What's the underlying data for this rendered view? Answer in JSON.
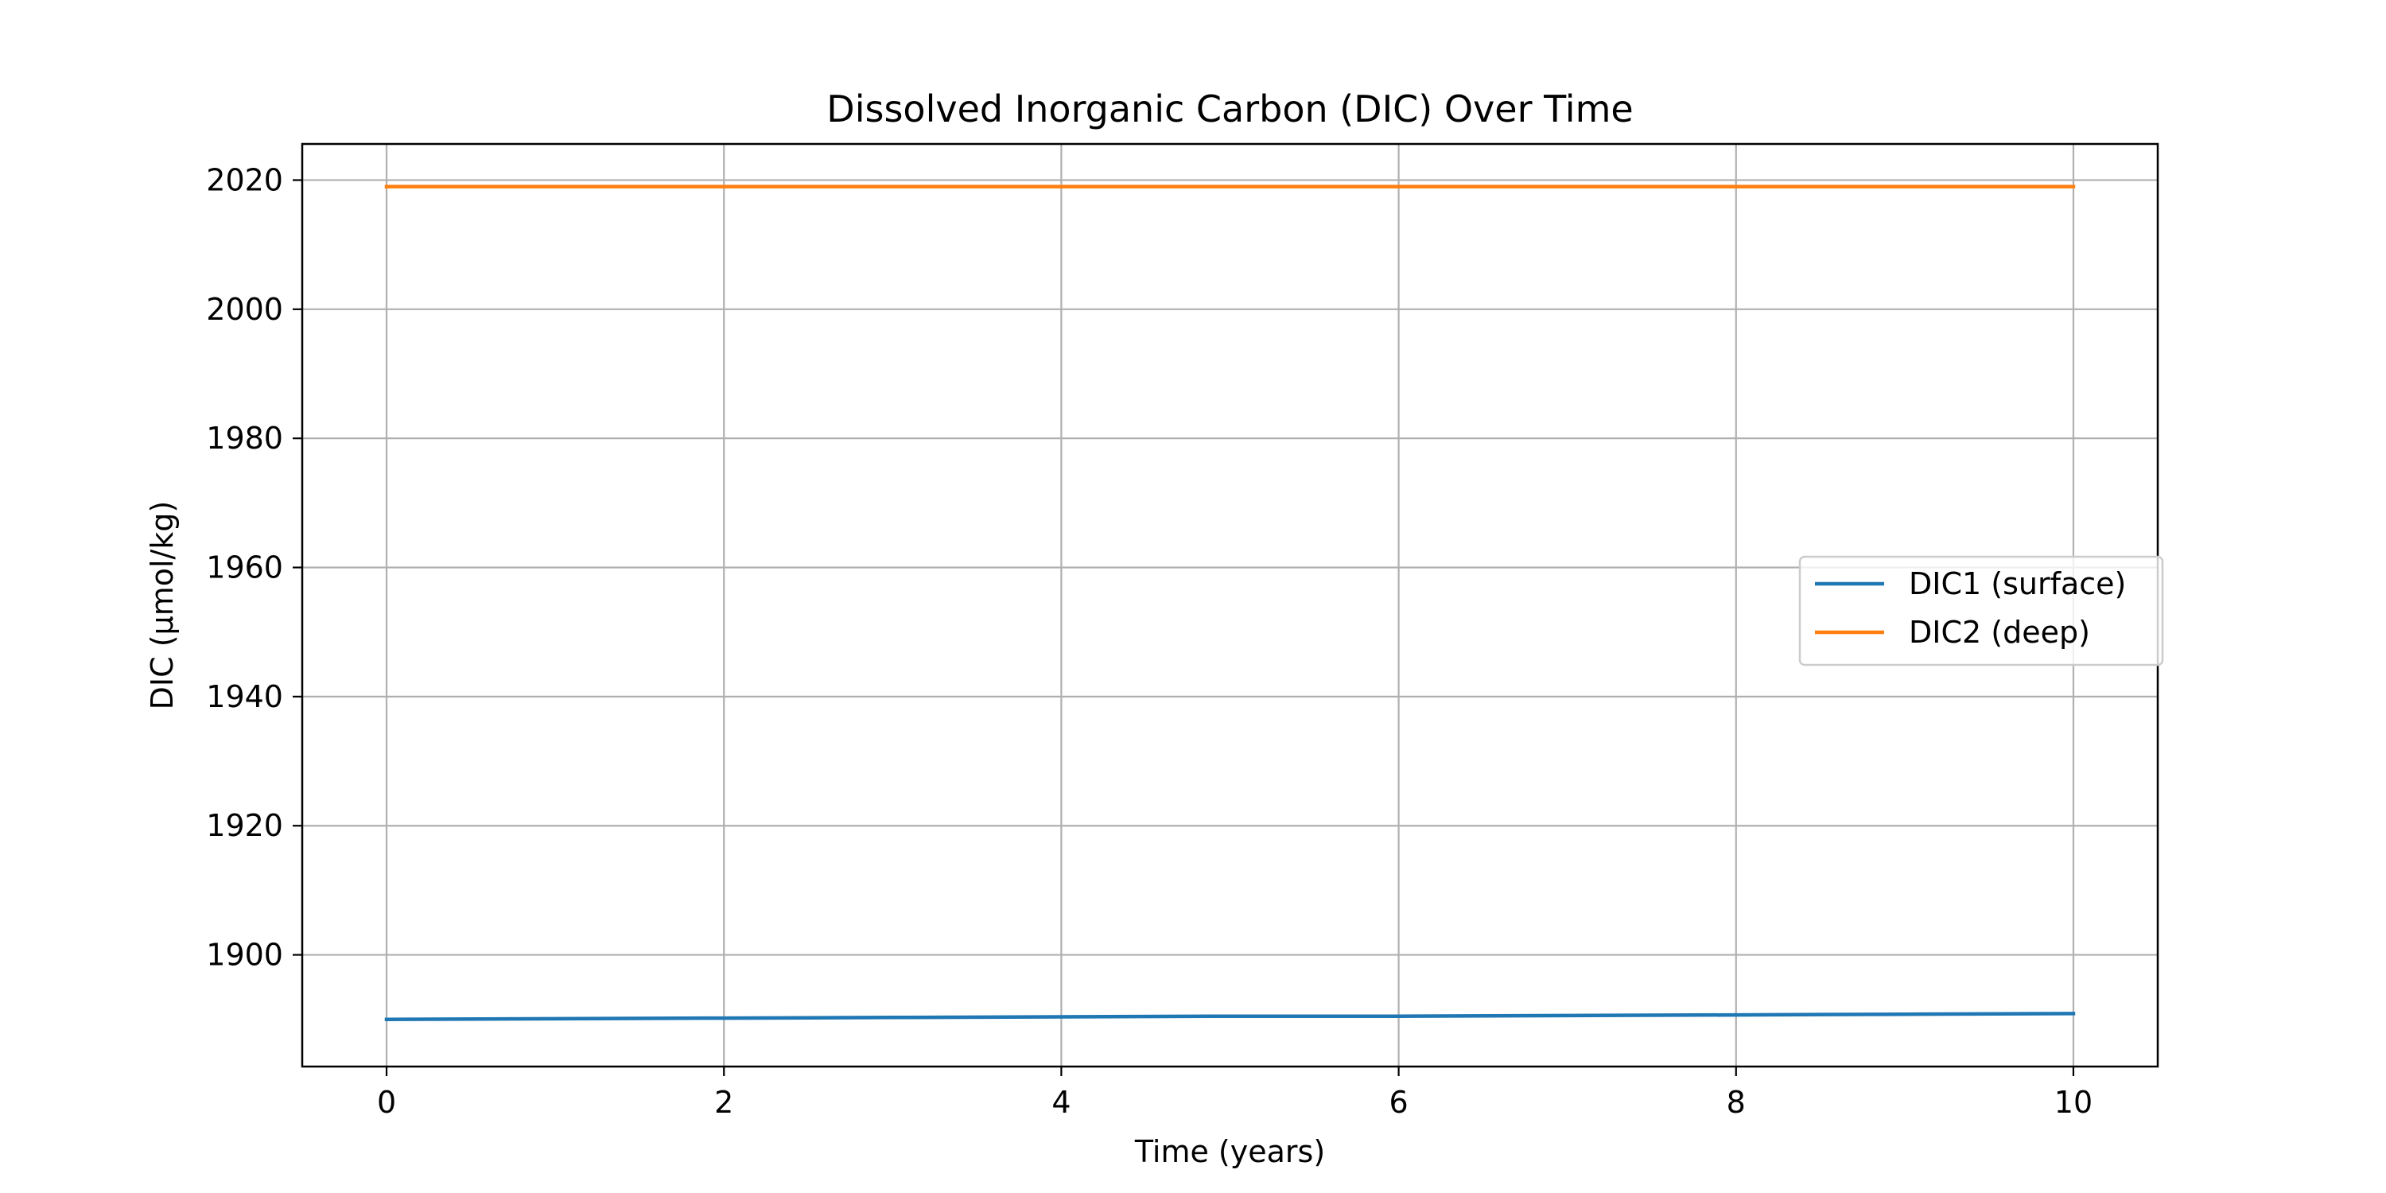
{
  "chart_data": {
    "type": "line",
    "title": "Dissolved Inorganic Carbon (DIC) Over Time",
    "xlabel": "Time (years)",
    "ylabel": "DIC (µmol/kg)",
    "xlim": [
      -0.5,
      10.5
    ],
    "ylim": [
      1882.7,
      2025.6
    ],
    "xticks": [
      0,
      2,
      4,
      6,
      8,
      10
    ],
    "yticks": [
      1900,
      1920,
      1940,
      1960,
      1980,
      2000,
      2020
    ],
    "grid": true,
    "legend_position": "center-right",
    "series": [
      {
        "name": "DIC1 (surface)",
        "color": "#1f77b4",
        "x": [
          0,
          1,
          2,
          3,
          4,
          5,
          6,
          7,
          8,
          9,
          10
        ],
        "y": [
          1890.0,
          1890.1,
          1890.2,
          1890.3,
          1890.4,
          1890.5,
          1890.5,
          1890.6,
          1890.7,
          1890.8,
          1890.9
        ]
      },
      {
        "name": "DIC2 (deep)",
        "color": "#ff7f0e",
        "x": [
          0,
          1,
          2,
          3,
          4,
          5,
          6,
          7,
          8,
          9,
          10
        ],
        "y": [
          2019.0,
          2019.0,
          2019.0,
          2019.0,
          2019.0,
          2019.0,
          2019.0,
          2019.0,
          2019.0,
          2019.0,
          2019.0
        ]
      }
    ]
  }
}
